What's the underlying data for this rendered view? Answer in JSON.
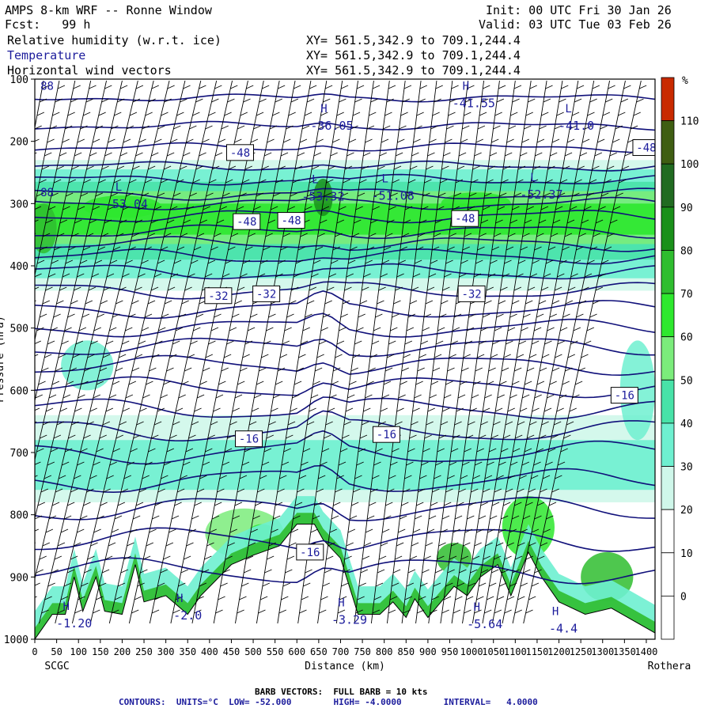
{
  "header": {
    "title": "AMPS 8-km WRF -- Ronne Window",
    "fcst": "Fcst:   99 h",
    "init": "Init: 00 UTC Fri 30 Jan 26",
    "valid": "Valid: 03 UTC Tue 03 Feb 26",
    "fields": [
      {
        "name": "Relative humidity (w.r.t. ice)",
        "xy": "XY= 561.5,342.9 to 709.1,244.4"
      },
      {
        "name": "Temperature",
        "xy": "XY= 561.5,342.9 to 709.1,244.4"
      },
      {
        "name": "Horizontal wind vectors",
        "xy": "XY= 561.5,342.9 to 709.1,244.4"
      }
    ]
  },
  "chart_data": {
    "type": "heatmap",
    "title": "AMPS 8-km WRF -- Ronne Window",
    "xlabel": "Distance (km)",
    "ylabel": "Pressure (hPa)",
    "xlim": [
      0,
      1420
    ],
    "ylim": [
      1000,
      100
    ],
    "x_ticks": [
      0,
      50,
      100,
      150,
      200,
      250,
      300,
      350,
      400,
      450,
      500,
      550,
      600,
      650,
      700,
      750,
      800,
      850,
      900,
      950,
      1000,
      1050,
      1100,
      1150,
      1200,
      1250,
      1300,
      1350,
      1400
    ],
    "y_ticks": [
      100,
      200,
      300,
      400,
      500,
      600,
      700,
      800,
      900,
      1000
    ],
    "endpoints": {
      "left": "SCGC",
      "right": "Rothera"
    },
    "colorbar": {
      "unit": "%",
      "levels": [
        0,
        10,
        20,
        30,
        40,
        50,
        60,
        70,
        80,
        90,
        100,
        110
      ],
      "colors": [
        "#ffffff",
        "#ffffff",
        "#ffffff",
        "#cff7ea",
        "#6ef0d0",
        "#48e2a8",
        "#7bec7b",
        "#2ee82e",
        "#2fbd2f",
        "#1a901a",
        "#216b21",
        "#3f5e12",
        "#c82a00"
      ]
    },
    "terrain_pressure_samples": [
      [
        0,
        1000
      ],
      [
        40,
        960
      ],
      [
        70,
        960
      ],
      [
        90,
        900
      ],
      [
        110,
        955
      ],
      [
        140,
        900
      ],
      [
        160,
        955
      ],
      [
        200,
        960
      ],
      [
        230,
        880
      ],
      [
        250,
        940
      ],
      [
        300,
        930
      ],
      [
        350,
        960
      ],
      [
        380,
        930
      ],
      [
        450,
        880
      ],
      [
        500,
        865
      ],
      [
        560,
        850
      ],
      [
        600,
        815
      ],
      [
        640,
        815
      ],
      [
        660,
        840
      ],
      [
        700,
        870
      ],
      [
        740,
        960
      ],
      [
        790,
        960
      ],
      [
        820,
        940
      ],
      [
        850,
        965
      ],
      [
        870,
        935
      ],
      [
        900,
        965
      ],
      [
        930,
        940
      ],
      [
        960,
        915
      ],
      [
        990,
        930
      ],
      [
        1020,
        900
      ],
      [
        1060,
        880
      ],
      [
        1090,
        930
      ],
      [
        1130,
        860
      ],
      [
        1160,
        900
      ],
      [
        1200,
        940
      ],
      [
        1260,
        960
      ],
      [
        1320,
        950
      ],
      [
        1420,
        990
      ]
    ],
    "temperature_contours": {
      "units": "°C",
      "low": -52.0,
      "high": -4.0,
      "interval": 4.0,
      "labels": [
        {
          "value": "-48",
          "x": 470,
          "p": 218
        },
        {
          "value": "-48",
          "x": 485,
          "p": 329
        },
        {
          "value": "-48",
          "x": 587,
          "p": 327
        },
        {
          "value": "-48",
          "x": 985,
          "p": 324
        },
        {
          "value": "-48",
          "x": 1400,
          "p": 210
        },
        {
          "value": "-32",
          "x": 420,
          "p": 448
        },
        {
          "value": "-32",
          "x": 530,
          "p": 445
        },
        {
          "value": "-32",
          "x": 1000,
          "p": 445
        },
        {
          "value": "-16",
          "x": 490,
          "p": 678
        },
        {
          "value": "-16",
          "x": 805,
          "p": 671
        },
        {
          "value": "-16",
          "x": 1350,
          "p": 608
        },
        {
          "value": "-16",
          "x": 630,
          "p": 860
        }
      ],
      "extrema": [
        {
          "kind": "H",
          "value": "-36.05",
          "x": 680,
          "p": 176
        },
        {
          "kind": "H",
          "value": "-41.55",
          "x": 1005,
          "p": 140
        },
        {
          "kind": "L",
          "value": "-53.04",
          "x": 210,
          "p": 302
        },
        {
          "kind": "L",
          "value": "-53.32",
          "x": 660,
          "p": 290
        },
        {
          "kind": "L",
          "value": "-51.08",
          "x": 820,
          "p": 289
        },
        {
          "kind": "L",
          "value": "-52.37",
          "x": 1160,
          "p": 287
        },
        {
          "kind": "L",
          "value": "-41.0",
          "x": 1240,
          "p": 176
        },
        {
          "kind": "H",
          "value": "-1.20",
          "x": 90,
          "p": 976
        },
        {
          "kind": "H",
          "value": "-2.0",
          "x": 350,
          "p": 963
        },
        {
          "kind": "H",
          "value": "-3.29",
          "x": 720,
          "p": 970
        },
        {
          "kind": "H",
          "value": "-5.64",
          "x": 1030,
          "p": 977
        },
        {
          "kind": "H",
          "value": "-4.4",
          "x": 1210,
          "p": 984
        }
      ],
      "edge_labels": [
        {
          "value": "88",
          "x": 10,
          "p": 117
        },
        {
          "value": "88",
          "x": 10,
          "p": 288
        }
      ]
    },
    "wind_barbs": {
      "legend": "FULL BARB = 10 kts",
      "columns_km_spacing": 36
    }
  },
  "footer": {
    "barb": "BARB VECTORS:  FULL BARB = 10 kts",
    "contours": "CONTOURS:  UNITS=°C  LOW= -52.000        HIGH= -4.0000        INTERVAL=   4.0000"
  },
  "colors": {
    "contour": "#10107a",
    "label_text": "#1c1c9c",
    "barb": "#000000"
  }
}
